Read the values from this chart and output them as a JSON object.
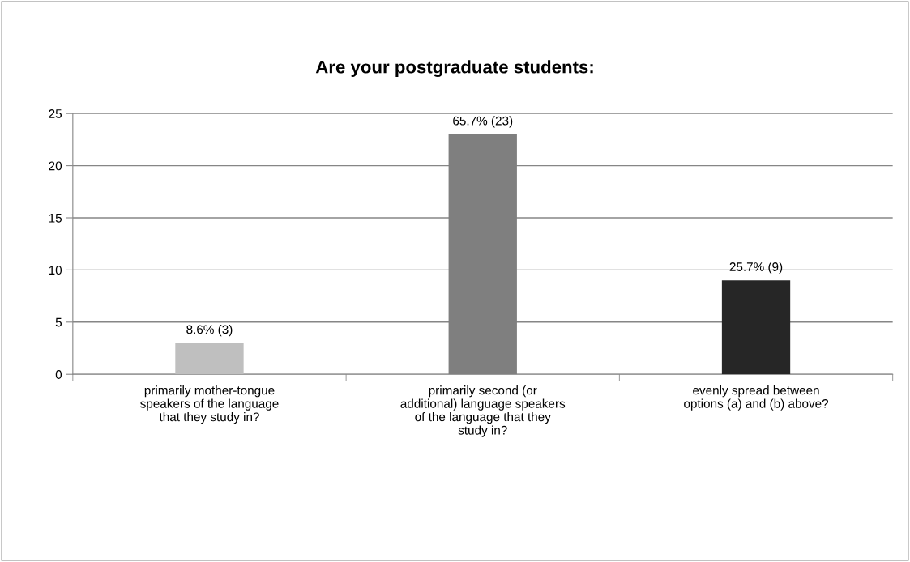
{
  "chart_data": {
    "type": "bar",
    "title": "Are your postgraduate students:",
    "categories": [
      "primarily mother-tongue\nspeakers of the language\nthat they study in?",
      "primarily second (or\nadditional) language speakers\nof the language that they\nstudy in?",
      "evenly spread between\noptions (a) and (b) above?"
    ],
    "values": [
      3,
      23,
      9
    ],
    "colors": [
      "#bfbfbf",
      "#7f7f7f",
      "#262626"
    ],
    "value_labels": [
      "8.6% (3)",
      "65.7% (23)",
      "25.7% (9)"
    ],
    "ylim": [
      0,
      25
    ],
    "yticks": [
      0,
      5,
      10,
      15,
      20,
      25
    ],
    "grid": "y",
    "legend": false
  }
}
